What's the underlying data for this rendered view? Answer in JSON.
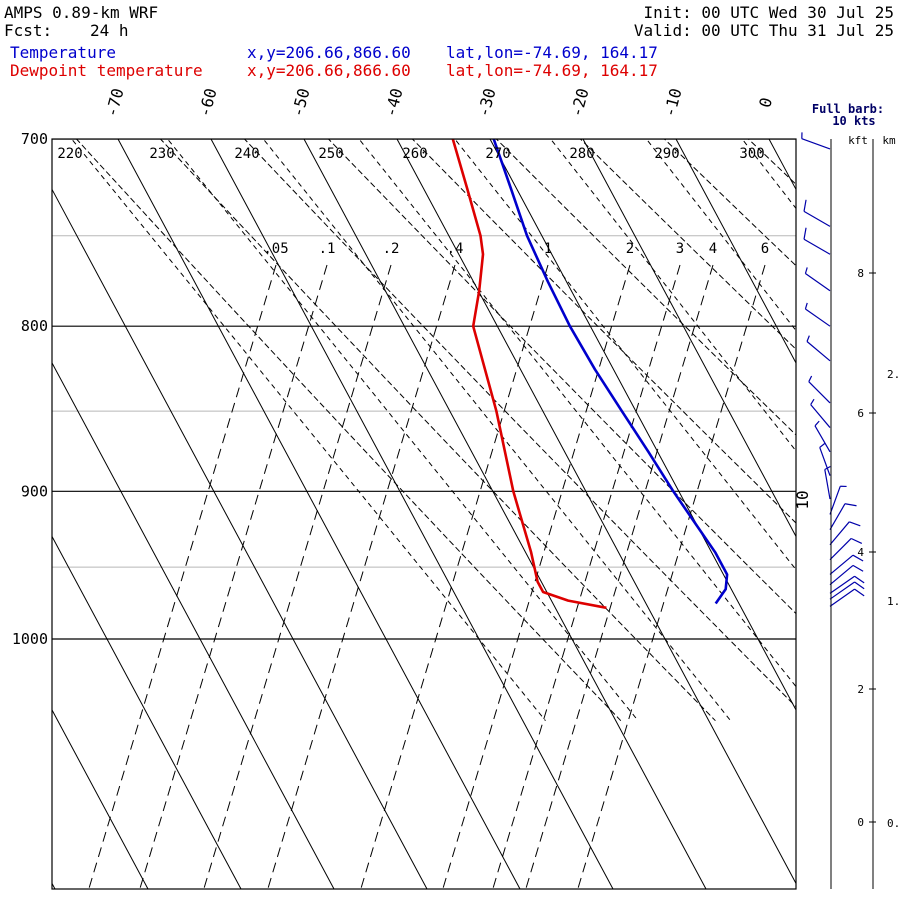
{
  "header": {
    "model": "AMPS 0.89-km WRF",
    "fcst_label": "Fcst:",
    "fcst_value": "24 h",
    "init": "Init: 00 UTC Wed 30 Jul 25",
    "valid": "Valid: 00 UTC Thu 31 Jul 25"
  },
  "legend": [
    {
      "name": "Temperature",
      "color": "#0000cc",
      "xy": "x,y=206.66,866.60",
      "latlon": "lat,lon=-74.69, 164.17"
    },
    {
      "name": "Dewpoint temperature",
      "color": "#dd0000",
      "xy": "x,y=206.66,866.60",
      "latlon": "lat,lon=-74.69, 164.17"
    }
  ],
  "barb_note": {
    "line1": "Full barb:",
    "line2": "10 kts"
  },
  "height_axis": {
    "kft_label": "kft",
    "km_label": "km"
  },
  "chart_data": {
    "type": "line",
    "title": "",
    "skewt": true,
    "yscale": "log-pressure",
    "pressure_range": [
      700,
      1045
    ],
    "pressure_ticks": [
      700,
      800,
      900,
      1000
    ],
    "isotherms": [
      -70,
      -60,
      -50,
      -40,
      -30,
      -20,
      -10,
      0
    ],
    "dry_adiabats": [
      220,
      230,
      240,
      250,
      260,
      270,
      280,
      290,
      300
    ],
    "mixing_ratios": [
      ".05",
      ".1",
      ".2",
      ".4",
      "1",
      "2",
      "3",
      "4",
      "6"
    ],
    "wind_value_label": "10",
    "kft_ticks": [
      {
        "label": "0",
        "px": 822
      },
      {
        "label": "2",
        "px": 689
      },
      {
        "label": "4",
        "px": 552
      },
      {
        "label": "6",
        "px": 413
      },
      {
        "label": "8",
        "px": 273
      }
    ],
    "km_ticks": [
      {
        "label": "0.",
        "px": 823
      },
      {
        "label": "1.",
        "px": 601
      },
      {
        "label": "2.",
        "px": 374
      }
    ],
    "series": [
      {
        "name": "Temperature",
        "color": "#0000cc",
        "points": [
          {
            "p": 700,
            "t": -29.6
          },
          {
            "p": 725,
            "t": -30.6
          },
          {
            "p": 750,
            "t": -31.6
          },
          {
            "p": 775,
            "t": -32.0
          },
          {
            "p": 800,
            "t": -32.2
          },
          {
            "p": 825,
            "t": -32.0
          },
          {
            "p": 850,
            "t": -31.5
          },
          {
            "p": 875,
            "t": -31.0
          },
          {
            "p": 900,
            "t": -30.6
          },
          {
            "p": 920,
            "t": -30.1
          },
          {
            "p": 940,
            "t": -29.6
          },
          {
            "p": 955,
            "t": -29.6
          },
          {
            "p": 965,
            "t": -30.6
          },
          {
            "p": 975,
            "t": -32.5
          }
        ]
      },
      {
        "name": "Dewpoint temperature",
        "color": "#dd0000",
        "points": [
          {
            "p": 700,
            "t": -34.0
          },
          {
            "p": 725,
            "t": -35.3
          },
          {
            "p": 750,
            "t": -36.6
          },
          {
            "p": 760,
            "t": -37.4
          },
          {
            "p": 780,
            "t": -39.9
          },
          {
            "p": 800,
            "t": -42.6
          },
          {
            "p": 850,
            "t": -45.0
          },
          {
            "p": 900,
            "t": -47.8
          },
          {
            "p": 940,
            "t": -49.4
          },
          {
            "p": 960,
            "t": -50.4
          },
          {
            "p": 967,
            "t": -50.4
          },
          {
            "p": 973,
            "t": -48.2
          },
          {
            "p": 978,
            "t": -44.5
          }
        ]
      }
    ],
    "wind_barbs": [
      {
        "p": 705,
        "dir": 290,
        "spd": 8
      },
      {
        "p": 745,
        "dir": 300,
        "spd": 10
      },
      {
        "p": 760,
        "dir": 300,
        "spd": 10
      },
      {
        "p": 780,
        "dir": 305,
        "spd": 9
      },
      {
        "p": 800,
        "dir": 305,
        "spd": 8
      },
      {
        "p": 820,
        "dir": 310,
        "spd": 7
      },
      {
        "p": 845,
        "dir": 315,
        "spd": 7
      },
      {
        "p": 860,
        "dir": 320,
        "spd": 6
      },
      {
        "p": 875,
        "dir": 330,
        "spd": 5
      },
      {
        "p": 890,
        "dir": 340,
        "spd": 5
      },
      {
        "p": 905,
        "dir": 350,
        "spd": 6
      },
      {
        "p": 915,
        "dir": 20,
        "spd": 8
      },
      {
        "p": 925,
        "dir": 30,
        "spd": 10
      },
      {
        "p": 935,
        "dir": 40,
        "spd": 11
      },
      {
        "p": 945,
        "dir": 45,
        "spd": 12
      },
      {
        "p": 955,
        "dir": 50,
        "spd": 12
      },
      {
        "p": 962,
        "dir": 50,
        "spd": 12
      },
      {
        "p": 968,
        "dir": 55,
        "spd": 12
      },
      {
        "p": 972,
        "dir": 55,
        "spd": 12
      },
      {
        "p": 977,
        "dir": 55,
        "spd": 12
      }
    ]
  }
}
